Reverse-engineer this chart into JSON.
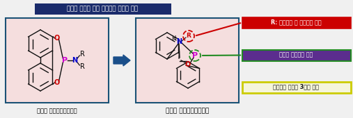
{
  "title": "구조적 제약에 의한 파이받개 능력의 증가",
  "title_bg": "#1a2b6b",
  "title_fg": "#ffffff",
  "bg_color": "#f0f0f0",
  "left_box_bg": "#f5dede",
  "left_box_border": "#1a5276",
  "right_box_bg": "#f5dede",
  "right_box_border": "#1a5276",
  "label1": "한고리 포스포라미다이트",
  "label2": "두고리 포스포라미다이트",
  "tag1_text": "R: 조율가능 및 카이랄성 도입",
  "tag2_text": "향상된 파이받개 능력",
  "tag3_text": "대량생산 가능한 3단계 합성",
  "tag1_bg": "#cc0000",
  "tag1_fg": "#ffffff",
  "tag2_bg": "#5b2d8e",
  "tag2_fg": "#ffffff",
  "tag3_bg": "#f5f5dc",
  "tag3_fg": "#111111",
  "tag3_border": "#cccc00",
  "tag2_border": "#228b22",
  "arrow_color": "#1a4f8a",
  "R_circle_color": "#cc0000",
  "P_circle_color": "#228b22",
  "P_color": "#cc00cc",
  "O_color": "#cc0000",
  "N_color": "#0000cc",
  "bond_color": "#111111"
}
